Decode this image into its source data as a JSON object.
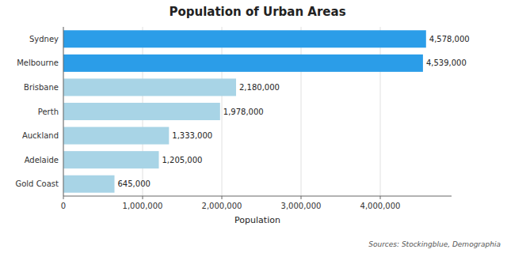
{
  "chart_data": {
    "type": "bar",
    "orientation": "horizontal",
    "title": "Population of Urban Areas",
    "x_label": "Population",
    "categories": [
      "Gold Coast",
      "Adelaide",
      "Auckland",
      "Perth",
      "Brisbane",
      "Melbourne",
      "Sydney"
    ],
    "values": [
      645000,
      1205000,
      1333000,
      1978000,
      2180000,
      4539000,
      4578000
    ],
    "value_labels": [
      "645,000",
      "1,205,000",
      "1,333,000",
      "1,978,000",
      "2,180,000",
      "4,539,000",
      "4,578,000"
    ],
    "data_labels": true,
    "colors": [
      "#a8d4e6",
      "#a8d4e6",
      "#a8d4e6",
      "#a8d4e6",
      "#a8d4e6",
      "#2b9de8",
      "#2b9de8"
    ],
    "xlim": [
      0,
      4900000
    ],
    "xticks": [
      0,
      {
        "value": 1000000,
        "label": "1,000,000"
      },
      {
        "value": 2000000,
        "label": "2,000,000"
      },
      {
        "value": 3000000,
        "label": "3,000,000"
      },
      {
        "value": 4000000,
        "label": "4,000,000"
      }
    ],
    "grid": true,
    "annotations": [
      "Sources: Stockingblue, Demographia"
    ]
  }
}
